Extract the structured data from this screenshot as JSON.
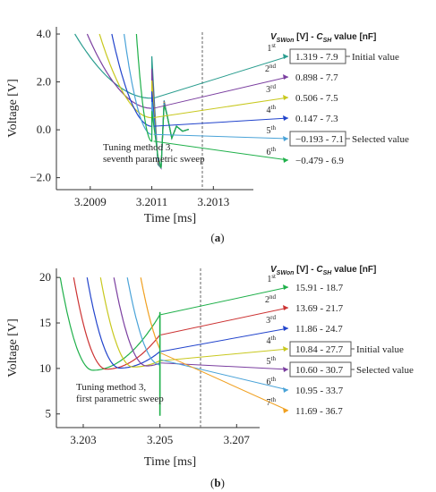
{
  "chart_data": [
    {
      "type": "line",
      "panel": "(a)",
      "panel_letter": "a",
      "xlabel": "Time [ms]",
      "ylabel": "Voltage [V]",
      "x_ticks": [
        "3.2009",
        "3.2011",
        "3.2013"
      ],
      "y_ticks": [
        "4.0",
        "2.0",
        "0.0",
        "−2.0"
      ],
      "header": {
        "v": "V",
        "v_sub": "SWon",
        "v_unit": " [V]  -  ",
        "c": "C",
        "c_sub": "SH",
        "c_unit": " value [nF]"
      },
      "note": [
        "Tuning method 3,",
        "seventh parametric sweep"
      ],
      "ordinals": [
        {
          "num": "1",
          "suf": "st"
        },
        {
          "num": "2",
          "suf": "nd"
        },
        {
          "num": "3",
          "suf": "rd"
        },
        {
          "num": "4",
          "suf": "th"
        },
        {
          "num": "5",
          "suf": "th"
        },
        {
          "num": "6",
          "suf": "th"
        }
      ],
      "values": [
        "1.319  -  7.9",
        "0.898  -  7.7",
        "0.506  -  7.5",
        "0.147  -  7.3",
        "−0.193  -  7.1",
        "−0.479  -  6.9"
      ],
      "initial_label": "Initial value",
      "selected_label": "Selected value",
      "initial_index": 0,
      "selected_index": 4,
      "colors": [
        "#2a9d8f",
        "#7b3fa0",
        "#c8c81e",
        "#2244cc",
        "#4aa3d8",
        "#1fb04a"
      ],
      "start_x": [
        3.20085,
        3.20089,
        3.20093,
        3.20097,
        3.20101,
        3.20105
      ],
      "v_min": [
        1.319,
        0.898,
        0.506,
        0.147,
        -0.193,
        -0.479
      ],
      "ylim": [
        -2.5,
        4.3
      ],
      "xlim": [
        3.20079,
        3.20143
      ]
    },
    {
      "type": "line",
      "panel": "(b)",
      "panel_letter": "b",
      "xlabel": "Time [ms]",
      "ylabel": "Voltage [V]",
      "x_ticks": [
        "3.203",
        "3.205",
        "3.207"
      ],
      "y_ticks": [
        "20",
        "15",
        "10",
        "5"
      ],
      "header": {
        "v": "V",
        "v_sub": "SWon",
        "v_unit": " [V]  -  ",
        "c": "C",
        "c_sub": "SH",
        "c_unit": " value [nF]"
      },
      "note": [
        "Tuning method 3,",
        "first parametric sweep"
      ],
      "ordinals": [
        {
          "num": "1",
          "suf": "st"
        },
        {
          "num": "2",
          "suf": "nd"
        },
        {
          "num": "3",
          "suf": "rd"
        },
        {
          "num": "4",
          "suf": "th"
        },
        {
          "num": "5",
          "suf": "th"
        },
        {
          "num": "6",
          "suf": "th"
        },
        {
          "num": "7",
          "suf": "th"
        }
      ],
      "values": [
        "15.91  -  18.7",
        "13.69  -  21.7",
        "11.86  -  24.7",
        "10.84  -  27.7",
        "10.60  -  30.7",
        "10.95  -  33.7",
        "11.69  -  36.7"
      ],
      "initial_label": "Initial value",
      "selected_label": "Selected value",
      "initial_index": 3,
      "selected_index": 4,
      "colors": [
        "#1fb04a",
        "#cc3333",
        "#2244cc",
        "#c8c81e",
        "#7b3fa0",
        "#4aa3d8",
        "#f0a020"
      ],
      "start_x": [
        3.2024,
        3.20275,
        3.2031,
        3.20345,
        3.2038,
        3.20415,
        3.2045
      ],
      "v_end": [
        15.91,
        13.69,
        11.86,
        10.84,
        10.6,
        10.95,
        11.69
      ],
      "ylim": [
        3.5,
        21
      ],
      "xlim": [
        3.2023,
        3.2076
      ]
    }
  ]
}
